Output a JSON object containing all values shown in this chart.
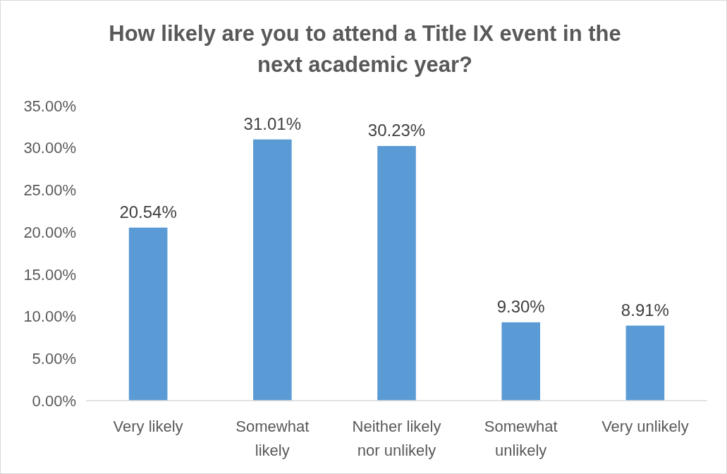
{
  "chart_data": {
    "type": "bar",
    "title": "How likely are you to attend a Title IX event in the next academic year?",
    "categories": [
      "Very likely",
      "Somewhat likely",
      "Neither likely nor unlikely",
      "Somewhat unlikely",
      "Very unlikely"
    ],
    "values": [
      20.54,
      31.01,
      30.23,
      9.3,
      8.91
    ],
    "color": "#5b9bd5",
    "value_labels": [
      "20.54%",
      "31.01%",
      "30.23%",
      "9.30%",
      "8.91%"
    ],
    "ylim": [
      0,
      35
    ],
    "yticks": [
      {
        "value": 0,
        "label": "0.00%"
      },
      {
        "value": 5,
        "label": "5.00%"
      },
      {
        "value": 10,
        "label": "10.00%"
      },
      {
        "value": 15,
        "label": "15.00%"
      },
      {
        "value": 20,
        "label": "20.00%"
      },
      {
        "value": 25,
        "label": "25.00%"
      },
      {
        "value": 30,
        "label": "30.00%"
      },
      {
        "value": 35,
        "label": "35.00%"
      }
    ],
    "grid": false
  }
}
